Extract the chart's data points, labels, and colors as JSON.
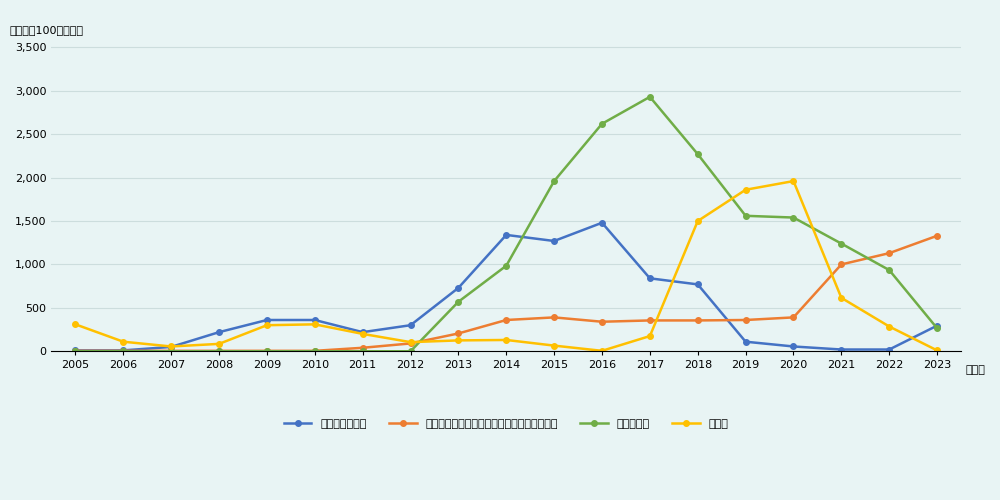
{
  "years": [
    2005,
    2006,
    2007,
    2008,
    2009,
    2010,
    2011,
    2012,
    2013,
    2014,
    2015,
    2016,
    2017,
    2018,
    2019,
    2020,
    2021,
    2022,
    2023
  ],
  "construction": [
    10,
    10,
    50,
    220,
    360,
    360,
    220,
    300,
    730,
    1340,
    1270,
    1480,
    840,
    770,
    110,
    55,
    20,
    20,
    295
  ],
  "data_processing": [
    5,
    5,
    5,
    5,
    5,
    5,
    40,
    90,
    205,
    360,
    390,
    340,
    355,
    355,
    360,
    390,
    1000,
    1130,
    1330
  ],
  "solar": [
    0,
    0,
    0,
    0,
    0,
    0,
    0,
    0,
    570,
    985,
    1960,
    2620,
    2930,
    2270,
    1560,
    1540,
    1240,
    935,
    265
  ],
  "accommodation": [
    310,
    110,
    55,
    85,
    300,
    310,
    200,
    105,
    125,
    130,
    65,
    5,
    175,
    1500,
    1860,
    1960,
    615,
    285,
    10
  ],
  "series_labels": [
    "建設業（産業）",
    "データ処理・ホスティング及び関連サービス",
    "太陽光発電",
    "宿泊業"
  ],
  "series_colors": [
    "#4472C4",
    "#ED7D31",
    "#70AD47",
    "#FFC000"
  ],
  "ylabel": "（単位：100万ドル）",
  "xlabel": "（年）",
  "ylim": [
    0,
    3700
  ],
  "yticks": [
    0,
    500,
    1000,
    1500,
    2000,
    2500,
    3000,
    3500
  ],
  "ytick_labels": [
    "0",
    "500",
    "1,000",
    "1,500",
    "2,000",
    "2,500",
    "3,000",
    "3,500"
  ],
  "background_color": "#E8F4F4",
  "grid_color": "#CCDDDD",
  "marker": "o",
  "markersize": 4,
  "linewidth": 1.8
}
